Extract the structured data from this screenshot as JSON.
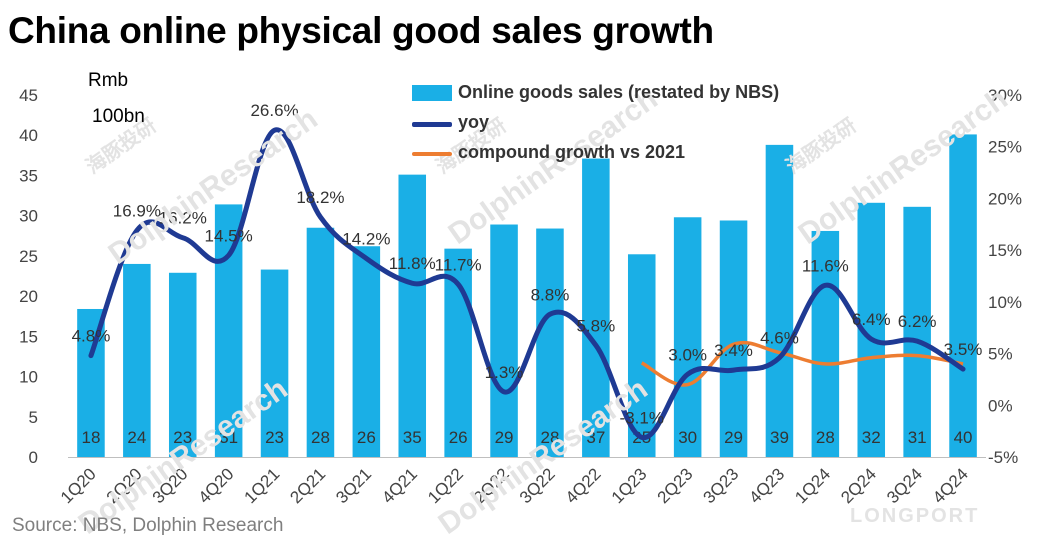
{
  "chart_data": {
    "type": "bar",
    "title": "China online physical good sales growth",
    "unit_lines": [
      "Rmb",
      "100bn"
    ],
    "source": "Source: NBS, Dolphin Research",
    "categories": [
      "1Q20",
      "2Q20",
      "3Q20",
      "4Q20",
      "1Q21",
      "2Q21",
      "3Q21",
      "4Q21",
      "1Q22",
      "2Q22",
      "3Q22",
      "4Q22",
      "1Q23",
      "2Q23",
      "3Q23",
      "4Q23",
      "1Q24",
      "2Q24",
      "3Q24",
      "4Q24"
    ],
    "left_axis": {
      "ylim": [
        0,
        45
      ],
      "ticks": [
        "0",
        "5",
        "10",
        "15",
        "20",
        "25",
        "30",
        "35",
        "40",
        "45"
      ]
    },
    "right_axis": {
      "ylim": [
        -5,
        30
      ],
      "ticks": [
        "-5%",
        "0%",
        "5%",
        "10%",
        "15%",
        "20%",
        "25%",
        "30%"
      ]
    },
    "series": [
      {
        "name": "Online goods sales (restated by NBS)",
        "type": "bar",
        "axis": "left",
        "color": "#1aafe6",
        "values": [
          18.4,
          24.0,
          22.9,
          31.4,
          23.3,
          28.5,
          26.2,
          35.1,
          25.9,
          28.9,
          28.4,
          37.1,
          25.2,
          29.8,
          29.4,
          38.8,
          28.1,
          31.6,
          31.1,
          40.1
        ],
        "labels": [
          "18",
          "24",
          "23",
          "31",
          "23",
          "28",
          "26",
          "35",
          "26",
          "29",
          "28",
          "37",
          "25",
          "30",
          "29",
          "39",
          "28",
          "32",
          "31",
          "40"
        ]
      },
      {
        "name": "yoy",
        "type": "line",
        "axis": "right",
        "color": "#1f3a93",
        "values": [
          4.8,
          16.9,
          16.2,
          14.5,
          26.6,
          18.2,
          14.2,
          11.8,
          11.7,
          1.3,
          8.8,
          5.8,
          -3.1,
          3.0,
          3.4,
          4.6,
          11.6,
          6.4,
          6.2,
          3.5
        ],
        "labels": [
          "4.8%",
          "16.9%",
          "16.2%",
          "14.5%",
          "26.6%",
          "18.2%",
          "14.2%",
          "11.8%",
          "11.7%",
          "1.3%",
          "8.8%",
          "5.8%",
          "-3.1%",
          "3.0%",
          "3.4%",
          "4.6%",
          "11.6%",
          "6.4%",
          "6.2%",
          "3.5%"
        ]
      },
      {
        "name": "compound growth vs 2021",
        "type": "line",
        "axis": "right",
        "color": "#ed7d31",
        "values": [
          null,
          null,
          null,
          null,
          null,
          null,
          null,
          null,
          null,
          null,
          null,
          null,
          4.1,
          2.0,
          5.9,
          5.1,
          4.0,
          4.6,
          4.8,
          4.0
        ]
      }
    ],
    "watermarks": [
      "海豚投研",
      "DolphinResearch",
      "LONGPORT"
    ]
  }
}
